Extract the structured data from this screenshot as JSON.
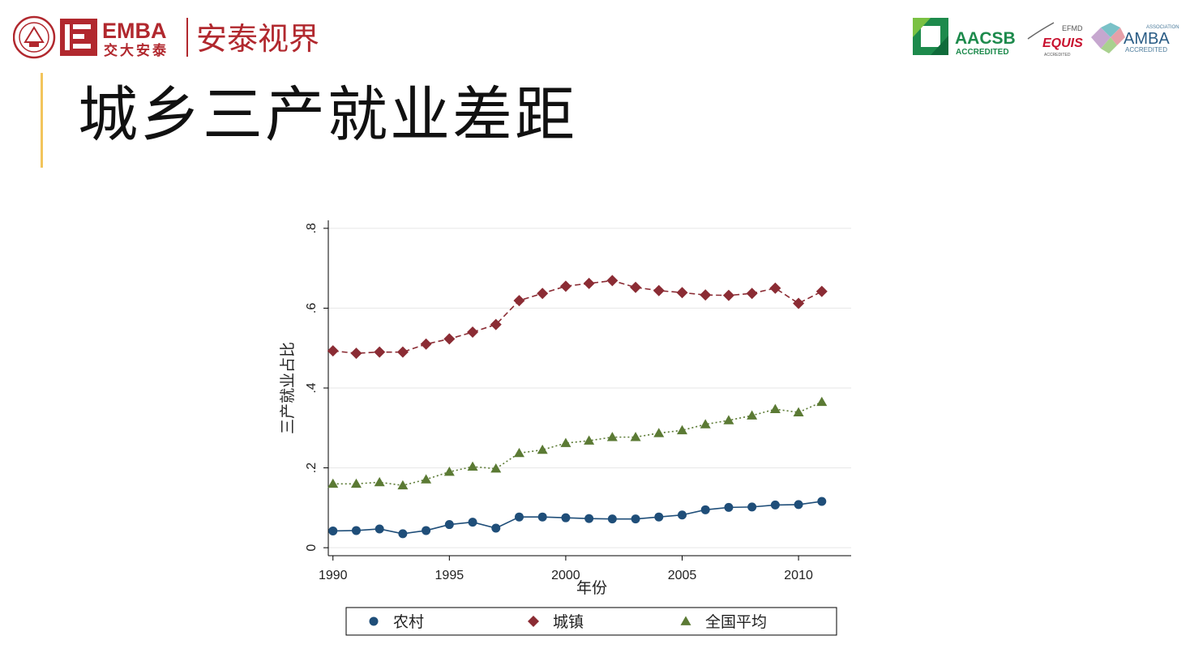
{
  "header": {
    "brand_emba": "EMBA",
    "brand_school_cn": "交大安泰",
    "brand_slogan": "安泰视界",
    "aacsb": "AACSB",
    "aacsb_sub": "ACCREDITED",
    "efmd": "EFMD",
    "equis": "EQUIS",
    "equis_sub": "ACCREDITED",
    "amba_assoc": "ASSOCIATION",
    "amba": "AMBA",
    "amba_sub": "ACCREDITED",
    "colors": {
      "brand_red": "#b1282e",
      "aacsb_green": "#1d8a4c",
      "equis_red": "#c8102e",
      "accent_bar": "#f2c55c"
    }
  },
  "slide": {
    "title": "城乡三产就业差距"
  },
  "chart_data": {
    "type": "line",
    "xlabel": "年份",
    "ylabel": "三产就业占比",
    "xlim": [
      1989.8,
      2012.4
    ],
    "ylim": [
      -0.02,
      0.82
    ],
    "xticks": [
      "1990",
      "1995",
      "2000",
      "2005",
      "2010"
    ],
    "yticks": [
      "0",
      ".2",
      ".4",
      ".6",
      ".8"
    ],
    "grid": "horizontal",
    "legend_position": "bottom",
    "x": [
      1990,
      1991,
      1992,
      1993,
      1994,
      1995,
      1996,
      1997,
      1998,
      1999,
      2000,
      2001,
      2002,
      2003,
      2004,
      2005,
      2006,
      2007,
      2008,
      2009,
      2010,
      2011
    ],
    "series": [
      {
        "name": "农村",
        "marker": "circle",
        "line": "solid",
        "color": "#1f4e79",
        "values": [
          0.042,
          0.043,
          0.047,
          0.035,
          0.043,
          0.058,
          0.064,
          0.049,
          0.077,
          0.077,
          0.075,
          0.073,
          0.072,
          0.072,
          0.077,
          0.082,
          0.095,
          0.101,
          0.102,
          0.107,
          0.108,
          0.116
        ]
      },
      {
        "name": "城镇",
        "marker": "diamond",
        "line": "dashed",
        "color": "#8b2c34",
        "values": [
          0.493,
          0.487,
          0.49,
          0.49,
          0.51,
          0.523,
          0.54,
          0.559,
          0.619,
          0.637,
          0.655,
          0.662,
          0.669,
          0.652,
          0.644,
          0.639,
          0.633,
          0.632,
          0.637,
          0.65,
          0.612,
          0.642
        ]
      },
      {
        "name": "全国平均",
        "marker": "triangle",
        "line": "dotted",
        "color": "#5b7a34",
        "values": [
          0.16,
          0.16,
          0.164,
          0.156,
          0.171,
          0.19,
          0.203,
          0.198,
          0.237,
          0.245,
          0.262,
          0.268,
          0.277,
          0.277,
          0.287,
          0.294,
          0.309,
          0.319,
          0.331,
          0.347,
          0.339,
          0.365
        ]
      }
    ]
  }
}
